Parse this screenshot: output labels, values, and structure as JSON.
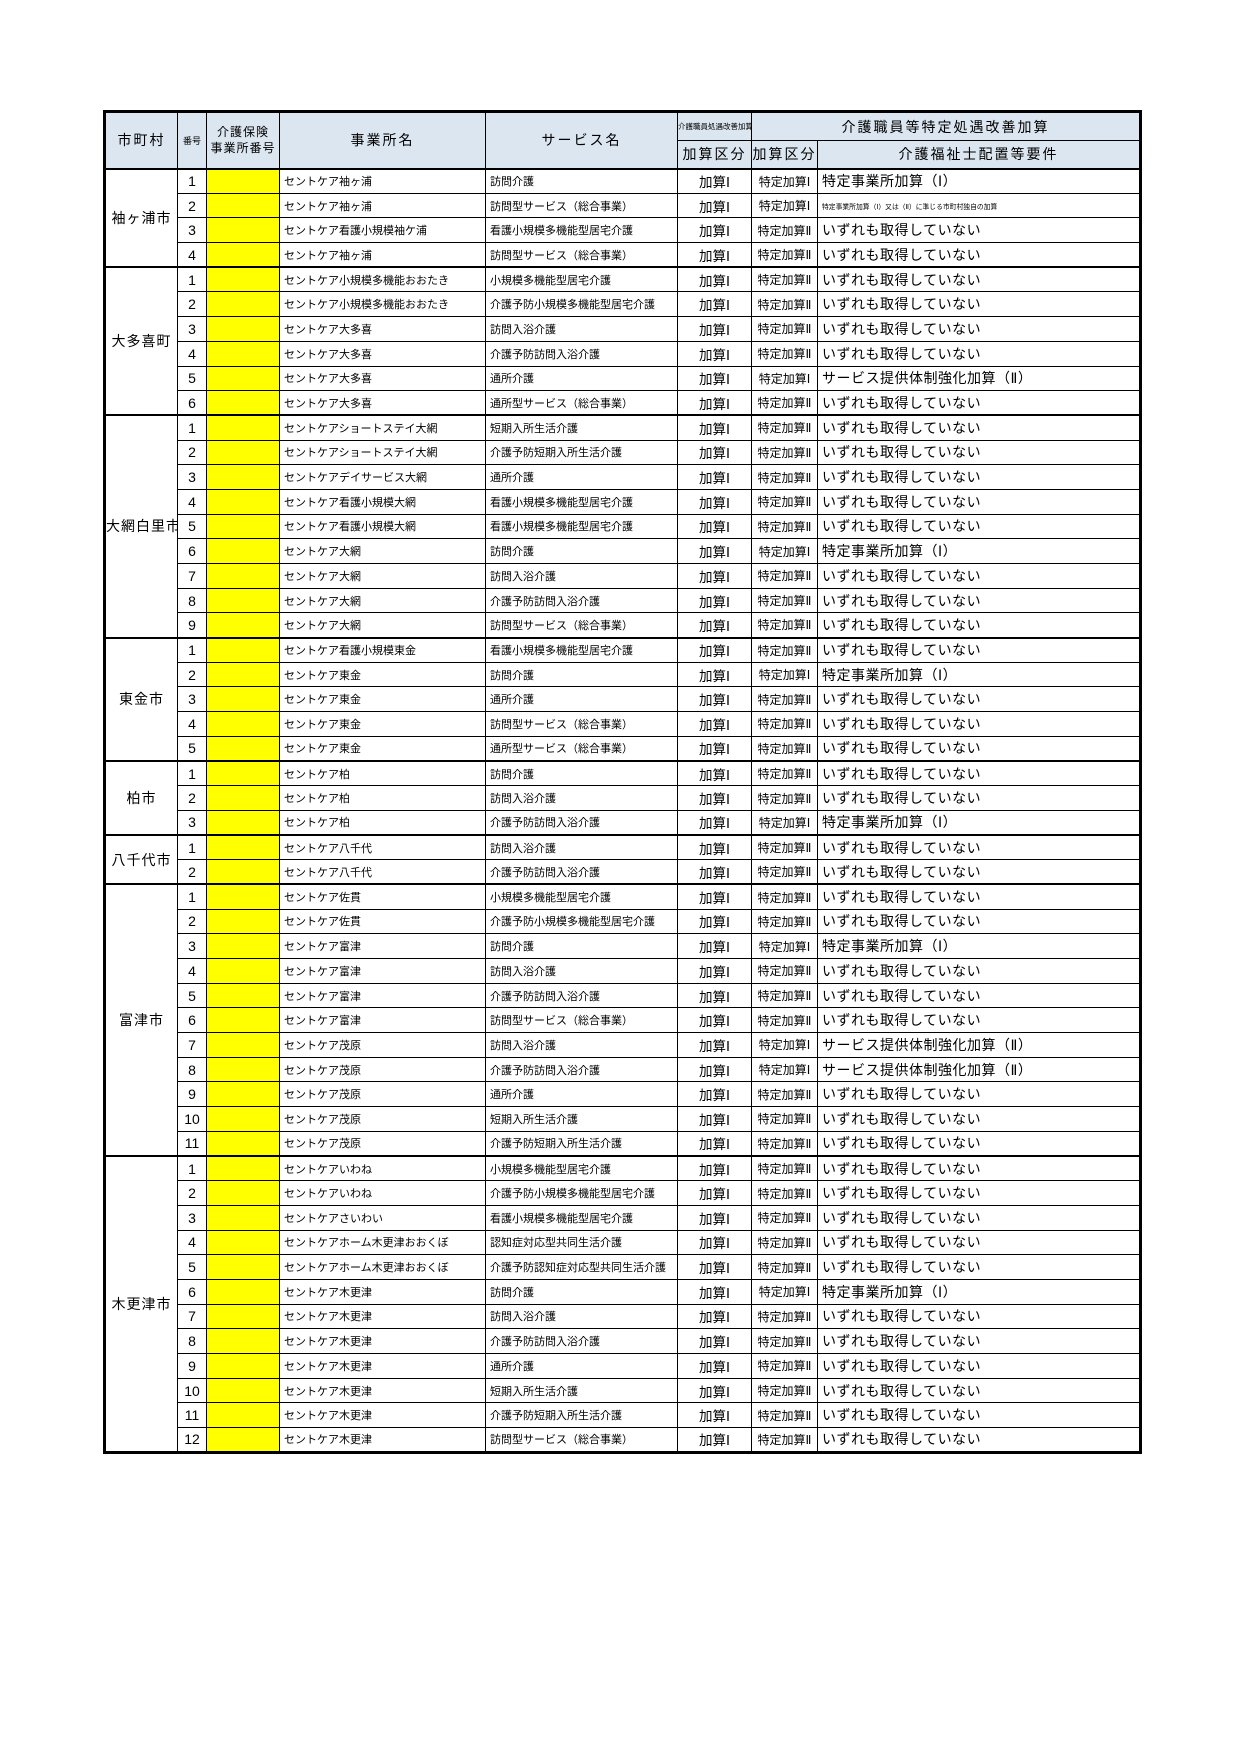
{
  "colors": {
    "header_bg": "#dce6f1",
    "office_number_cell_bg": "#ffff00",
    "border": "#000000"
  },
  "header": {
    "municipality": "市町村",
    "number": "番号",
    "office_number_line1": "介護保険",
    "office_number_line2": "事業所番号",
    "office_name": "事業所名",
    "service_name": "サービス名",
    "shoguu_kaizen_kasan": "介護職員処遇改善加算",
    "kasan_kubun_1": "加算区分",
    "tokutei_shoguu_group": "介護職員等特定処遇改善加算",
    "kasan_kubun_2": "加算区分",
    "fukushishi_haichi": "介護福祉士配置等要件"
  },
  "groups": [
    {
      "municipality": "袖ヶ浦市",
      "rows": [
        {
          "no": "1",
          "office": "セントケア袖ヶ浦",
          "service": "訪問介護",
          "kasan": "加算Ⅰ",
          "tokutei": "特定加算Ⅰ",
          "haichi": "特定事業所加算（Ⅰ）",
          "small": false
        },
        {
          "no": "2",
          "office": "セントケア袖ヶ浦",
          "service": "訪問型サービス（総合事業）",
          "kasan": "加算Ⅰ",
          "tokutei": "特定加算Ⅰ",
          "haichi": "特定事業所加算（Ⅰ）又は（Ⅱ）に準じる市町村独自の加算",
          "small": true
        },
        {
          "no": "3",
          "office": "セントケア看護小規模袖ケ浦",
          "service": "看護小規模多機能型居宅介護",
          "kasan": "加算Ⅰ",
          "tokutei": "特定加算Ⅱ",
          "haichi": "いずれも取得していない",
          "small": false
        },
        {
          "no": "4",
          "office": "セントケア袖ヶ浦",
          "service": "訪問型サービス（総合事業）",
          "kasan": "加算Ⅰ",
          "tokutei": "特定加算Ⅱ",
          "haichi": "いずれも取得していない",
          "small": false
        }
      ]
    },
    {
      "municipality": "大多喜町",
      "rows": [
        {
          "no": "1",
          "office": "セントケア小規模多機能おおたき",
          "service": "小規模多機能型居宅介護",
          "kasan": "加算Ⅰ",
          "tokutei": "特定加算Ⅱ",
          "haichi": "いずれも取得していない",
          "small": false
        },
        {
          "no": "2",
          "office": "セントケア小規模多機能おおたき",
          "service": "介護予防小規模多機能型居宅介護",
          "kasan": "加算Ⅰ",
          "tokutei": "特定加算Ⅱ",
          "haichi": "いずれも取得していない",
          "small": false
        },
        {
          "no": "3",
          "office": "セントケア大多喜",
          "service": "訪問入浴介護",
          "kasan": "加算Ⅰ",
          "tokutei": "特定加算Ⅱ",
          "haichi": "いずれも取得していない",
          "small": false
        },
        {
          "no": "4",
          "office": "セントケア大多喜",
          "service": "介護予防訪問入浴介護",
          "kasan": "加算Ⅰ",
          "tokutei": "特定加算Ⅱ",
          "haichi": "いずれも取得していない",
          "small": false
        },
        {
          "no": "5",
          "office": "セントケア大多喜",
          "service": "通所介護",
          "kasan": "加算Ⅰ",
          "tokutei": "特定加算Ⅰ",
          "haichi": "サービス提供体制強化加算（Ⅱ）",
          "small": false
        },
        {
          "no": "6",
          "office": "セントケア大多喜",
          "service": "通所型サービス（総合事業）",
          "kasan": "加算Ⅰ",
          "tokutei": "特定加算Ⅱ",
          "haichi": "いずれも取得していない",
          "small": false
        }
      ]
    },
    {
      "municipality": "大網白里市",
      "rows": [
        {
          "no": "1",
          "office": "セントケアショートステイ大網",
          "service": "短期入所生活介護",
          "kasan": "加算Ⅰ",
          "tokutei": "特定加算Ⅱ",
          "haichi": "いずれも取得していない",
          "small": false
        },
        {
          "no": "2",
          "office": "セントケアショートステイ大網",
          "service": "介護予防短期入所生活介護",
          "kasan": "加算Ⅰ",
          "tokutei": "特定加算Ⅱ",
          "haichi": "いずれも取得していない",
          "small": false
        },
        {
          "no": "3",
          "office": "セントケアデイサービス大網",
          "service": "通所介護",
          "kasan": "加算Ⅰ",
          "tokutei": "特定加算Ⅱ",
          "haichi": "いずれも取得していない",
          "small": false
        },
        {
          "no": "4",
          "office": "セントケア看護小規模大網",
          "service": "看護小規模多機能型居宅介護",
          "kasan": "加算Ⅰ",
          "tokutei": "特定加算Ⅱ",
          "haichi": "いずれも取得していない",
          "small": false
        },
        {
          "no": "5",
          "office": "セントケア看護小規模大網",
          "service": "看護小規模多機能型居宅介護",
          "kasan": "加算Ⅰ",
          "tokutei": "特定加算Ⅱ",
          "haichi": "いずれも取得していない",
          "small": false
        },
        {
          "no": "6",
          "office": "セントケア大網",
          "service": "訪問介護",
          "kasan": "加算Ⅰ",
          "tokutei": "特定加算Ⅰ",
          "haichi": "特定事業所加算（Ⅰ）",
          "small": false
        },
        {
          "no": "7",
          "office": "セントケア大網",
          "service": "訪問入浴介護",
          "kasan": "加算Ⅰ",
          "tokutei": "特定加算Ⅱ",
          "haichi": "いずれも取得していない",
          "small": false
        },
        {
          "no": "8",
          "office": "セントケア大網",
          "service": "介護予防訪問入浴介護",
          "kasan": "加算Ⅰ",
          "tokutei": "特定加算Ⅱ",
          "haichi": "いずれも取得していない",
          "small": false
        },
        {
          "no": "9",
          "office": "セントケア大網",
          "service": "訪問型サービス（総合事業）",
          "kasan": "加算Ⅰ",
          "tokutei": "特定加算Ⅱ",
          "haichi": "いずれも取得していない",
          "small": false
        }
      ]
    },
    {
      "municipality": "東金市",
      "rows": [
        {
          "no": "1",
          "office": "セントケア看護小規模東金",
          "service": "看護小規模多機能型居宅介護",
          "kasan": "加算Ⅰ",
          "tokutei": "特定加算Ⅱ",
          "haichi": "いずれも取得していない",
          "small": false
        },
        {
          "no": "2",
          "office": "セントケア東金",
          "service": "訪問介護",
          "kasan": "加算Ⅰ",
          "tokutei": "特定加算Ⅰ",
          "haichi": "特定事業所加算（Ⅰ）",
          "small": false
        },
        {
          "no": "3",
          "office": "セントケア東金",
          "service": "通所介護",
          "kasan": "加算Ⅰ",
          "tokutei": "特定加算Ⅱ",
          "haichi": "いずれも取得していない",
          "small": false
        },
        {
          "no": "4",
          "office": "セントケア東金",
          "service": "訪問型サービス（総合事業）",
          "kasan": "加算Ⅰ",
          "tokutei": "特定加算Ⅱ",
          "haichi": "いずれも取得していない",
          "small": false
        },
        {
          "no": "5",
          "office": "セントケア東金",
          "service": "通所型サービス（総合事業）",
          "kasan": "加算Ⅰ",
          "tokutei": "特定加算Ⅱ",
          "haichi": "いずれも取得していない",
          "small": false
        }
      ]
    },
    {
      "municipality": "柏市",
      "rows": [
        {
          "no": "1",
          "office": "セントケア柏",
          "service": "訪問介護",
          "kasan": "加算Ⅰ",
          "tokutei": "特定加算Ⅱ",
          "haichi": "いずれも取得していない",
          "small": false
        },
        {
          "no": "2",
          "office": "セントケア柏",
          "service": "訪問入浴介護",
          "kasan": "加算Ⅰ",
          "tokutei": "特定加算Ⅱ",
          "haichi": "いずれも取得していない",
          "small": false
        },
        {
          "no": "3",
          "office": "セントケア柏",
          "service": "介護予防訪問入浴介護",
          "kasan": "加算Ⅰ",
          "tokutei": "特定加算Ⅰ",
          "haichi": "特定事業所加算（Ⅰ）",
          "small": false
        }
      ]
    },
    {
      "municipality": "八千代市",
      "rows": [
        {
          "no": "1",
          "office": "セントケア八千代",
          "service": "訪問入浴介護",
          "kasan": "加算Ⅰ",
          "tokutei": "特定加算Ⅱ",
          "haichi": "いずれも取得していない",
          "small": false
        },
        {
          "no": "2",
          "office": "セントケア八千代",
          "service": "介護予防訪問入浴介護",
          "kasan": "加算Ⅰ",
          "tokutei": "特定加算Ⅱ",
          "haichi": "いずれも取得していない",
          "small": false
        }
      ]
    },
    {
      "municipality": "富津市",
      "rows": [
        {
          "no": "1",
          "office": "セントケア佐貫",
          "service": "小規模多機能型居宅介護",
          "kasan": "加算Ⅰ",
          "tokutei": "特定加算Ⅱ",
          "haichi": "いずれも取得していない",
          "small": false
        },
        {
          "no": "2",
          "office": "セントケア佐貫",
          "service": "介護予防小規模多機能型居宅介護",
          "kasan": "加算Ⅰ",
          "tokutei": "特定加算Ⅱ",
          "haichi": "いずれも取得していない",
          "small": false
        },
        {
          "no": "3",
          "office": "セントケア富津",
          "service": "訪問介護",
          "kasan": "加算Ⅰ",
          "tokutei": "特定加算Ⅰ",
          "haichi": "特定事業所加算（Ⅰ）",
          "small": false
        },
        {
          "no": "4",
          "office": "セントケア富津",
          "service": "訪問入浴介護",
          "kasan": "加算Ⅰ",
          "tokutei": "特定加算Ⅱ",
          "haichi": "いずれも取得していない",
          "small": false
        },
        {
          "no": "5",
          "office": "セントケア富津",
          "service": "介護予防訪問入浴介護",
          "kasan": "加算Ⅰ",
          "tokutei": "特定加算Ⅱ",
          "haichi": "いずれも取得していない",
          "small": false
        },
        {
          "no": "6",
          "office": "セントケア富津",
          "service": "訪問型サービス（総合事業）",
          "kasan": "加算Ⅰ",
          "tokutei": "特定加算Ⅱ",
          "haichi": "いずれも取得していない",
          "small": false
        },
        {
          "no": "7",
          "office": "セントケア茂原",
          "service": "訪問入浴介護",
          "kasan": "加算Ⅰ",
          "tokutei": "特定加算Ⅰ",
          "haichi": "サービス提供体制強化加算（Ⅱ）",
          "small": false
        },
        {
          "no": "8",
          "office": "セントケア茂原",
          "service": "介護予防訪問入浴介護",
          "kasan": "加算Ⅰ",
          "tokutei": "特定加算Ⅰ",
          "haichi": "サービス提供体制強化加算（Ⅱ）",
          "small": false
        },
        {
          "no": "9",
          "office": "セントケア茂原",
          "service": "通所介護",
          "kasan": "加算Ⅰ",
          "tokutei": "特定加算Ⅱ",
          "haichi": "いずれも取得していない",
          "small": false
        },
        {
          "no": "10",
          "office": "セントケア茂原",
          "service": "短期入所生活介護",
          "kasan": "加算Ⅰ",
          "tokutei": "特定加算Ⅱ",
          "haichi": "いずれも取得していない",
          "small": false
        },
        {
          "no": "11",
          "office": "セントケア茂原",
          "service": "介護予防短期入所生活介護",
          "kasan": "加算Ⅰ",
          "tokutei": "特定加算Ⅱ",
          "haichi": "いずれも取得していない",
          "small": false
        }
      ]
    },
    {
      "municipality": "木更津市",
      "rows": [
        {
          "no": "1",
          "office": "セントケアいわね",
          "service": "小規模多機能型居宅介護",
          "kasan": "加算Ⅰ",
          "tokutei": "特定加算Ⅱ",
          "haichi": "いずれも取得していない",
          "small": false
        },
        {
          "no": "2",
          "office": "セントケアいわね",
          "service": "介護予防小規模多機能型居宅介護",
          "kasan": "加算Ⅰ",
          "tokutei": "特定加算Ⅱ",
          "haichi": "いずれも取得していない",
          "small": false
        },
        {
          "no": "3",
          "office": "セントケアさいわい",
          "service": "看護小規模多機能型居宅介護",
          "kasan": "加算Ⅰ",
          "tokutei": "特定加算Ⅱ",
          "haichi": "いずれも取得していない",
          "small": false
        },
        {
          "no": "4",
          "office": "セントケアホーム木更津おおくぼ",
          "service": "認知症対応型共同生活介護",
          "kasan": "加算Ⅰ",
          "tokutei": "特定加算Ⅱ",
          "haichi": "いずれも取得していない",
          "small": false
        },
        {
          "no": "5",
          "office": "セントケアホーム木更津おおくぼ",
          "service": "介護予防認知症対応型共同生活介護",
          "kasan": "加算Ⅰ",
          "tokutei": "特定加算Ⅱ",
          "haichi": "いずれも取得していない",
          "small": false
        },
        {
          "no": "6",
          "office": "セントケア木更津",
          "service": "訪問介護",
          "kasan": "加算Ⅰ",
          "tokutei": "特定加算Ⅰ",
          "haichi": "特定事業所加算（Ⅰ）",
          "small": false
        },
        {
          "no": "7",
          "office": "セントケア木更津",
          "service": "訪問入浴介護",
          "kasan": "加算Ⅰ",
          "tokutei": "特定加算Ⅱ",
          "haichi": "いずれも取得していない",
          "small": false
        },
        {
          "no": "8",
          "office": "セントケア木更津",
          "service": "介護予防訪問入浴介護",
          "kasan": "加算Ⅰ",
          "tokutei": "特定加算Ⅱ",
          "haichi": "いずれも取得していない",
          "small": false
        },
        {
          "no": "9",
          "office": "セントケア木更津",
          "service": "通所介護",
          "kasan": "加算Ⅰ",
          "tokutei": "特定加算Ⅱ",
          "haichi": "いずれも取得していない",
          "small": false
        },
        {
          "no": "10",
          "office": "セントケア木更津",
          "service": "短期入所生活介護",
          "kasan": "加算Ⅰ",
          "tokutei": "特定加算Ⅱ",
          "haichi": "いずれも取得していない",
          "small": false
        },
        {
          "no": "11",
          "office": "セントケア木更津",
          "service": "介護予防短期入所生活介護",
          "kasan": "加算Ⅰ",
          "tokutei": "特定加算Ⅱ",
          "haichi": "いずれも取得していない",
          "small": false
        },
        {
          "no": "12",
          "office": "セントケア木更津",
          "service": "訪問型サービス（総合事業）",
          "kasan": "加算Ⅰ",
          "tokutei": "特定加算Ⅱ",
          "haichi": "いずれも取得していない",
          "small": false
        }
      ]
    }
  ]
}
